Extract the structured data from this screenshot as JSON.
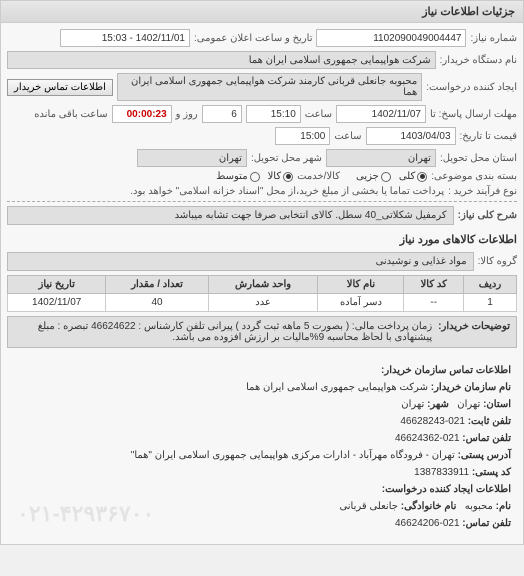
{
  "panel_title": "جزئیات اطلاعات نیاز",
  "top": {
    "req_no_label": "شماره نیاز:",
    "req_no": "1102090049004447",
    "pub_date_label": "تاریخ و ساعت اعلان عمومی:",
    "pub_date": "1402/11/01 - 15:03",
    "buyer_device_label": "نام دستگاه خریدار:",
    "buyer_device": "شرکت هواپیمایی جمهوری اسلامی ایران هما",
    "creator_label": "ایجاد کننده درخواست:",
    "creator": "محبوبه جانعلی قربانی کارمند شرکت هواپیمایی جمهوری اسلامی ایران هما",
    "contact_btn": "اطلاعات تماس خریدار",
    "deadline_send_label": "مهلت ارسال پاسخ: تا",
    "deadline_date": "1402/11/07",
    "deadline_time_label": "ساعت",
    "deadline_time": "15:10",
    "days_label": "روز و",
    "days": "6",
    "countdown": "00:00:23",
    "remaining_label": "ساعت باقی مانده",
    "quote_until_label": "قیمت تا تاریخ:",
    "quote_until_date": "1403/04/03",
    "quote_until_time": "15:00",
    "delivery_state_label": "استان محل تحویل:",
    "delivery_state": "تهران",
    "delivery_city_label": "شهر محل تحویل:",
    "delivery_city": "تهران",
    "package_label": "بسته بندی موضوعی:",
    "pkg_all": "کلی",
    "pkg_partial": "جزیی",
    "goods_label": "کالا/خدمت",
    "goods": "کالا",
    "middle": "متوسط",
    "payment_label": "نوع فرآیند خرید :",
    "payment_note": "پرداخت تماما یا بخشی از مبلغ خرید،از محل \"اسناد خزانه اسلامی\" خواهد بود."
  },
  "desc": {
    "title_label": "شرح کلی نیاز:",
    "title_text": "کرمفیل شکلاتی_40 سطل. کالای انتخابی صرفا جهت تشابه میباشد",
    "goods_info_header": "اطلاعات کالاهای مورد نیاز",
    "group_label": "گروه کالا:",
    "group_text": "مواد غذایی و نوشیدنی"
  },
  "table": {
    "headers": [
      "ردیف",
      "کد کالا",
      "نام کالا",
      "واحد شمارش",
      "تعداد / مقدار",
      "تاریخ نیاز"
    ],
    "rows": [
      [
        "1",
        "--",
        "دسر آماده",
        "عدد",
        "40",
        "1402/11/07"
      ]
    ]
  },
  "notes": {
    "label": "توضیحات خریدار:",
    "text": "زمان پرداخت مالی: ( بصورت 5 ماهه ثبت گردد ) پیرانی تلفن کارشناس : 46624622 تبصره : مبلغ پیشنهادی با لحاظ محاسبه 9%مالیات بر ارزش افزوده می باشد."
  },
  "contact": {
    "header": "اطلاعات تماس سازمان خریدار:",
    "org_label": "نام سازمان خریدار:",
    "org": "شرکت هواپیمایی جمهوری اسلامی ایران هما",
    "state_label": "استان:",
    "state": "تهران",
    "city_label": "شهر:",
    "city": "تهران",
    "phone_label": "تلفن ثابت:",
    "phone": "021-46628243",
    "fax_label": "تلفن تماس:",
    "fax": "021-46624362",
    "addr_label": "آدرس پستی:",
    "addr": "تهران - فرودگاه مهرآباد - ادارات مرکزی هواپیمایی جمهوری اسلامی ایران \"هما\"",
    "zip_label": "کد پستی:",
    "zip": "1387833911",
    "creator_header": "اطلاعات ایجاد کننده درخواست:",
    "c_name_label": "نام:",
    "c_name": "محبوبه",
    "c_family_label": "نام خانوادگی:",
    "c_family": "جانعلی قربانی",
    "c_phone_label": "تلفن تماس:",
    "c_phone": "021-46624206",
    "watermark": "۰۲۱-۴۲۹۳۶۷۰۰"
  }
}
